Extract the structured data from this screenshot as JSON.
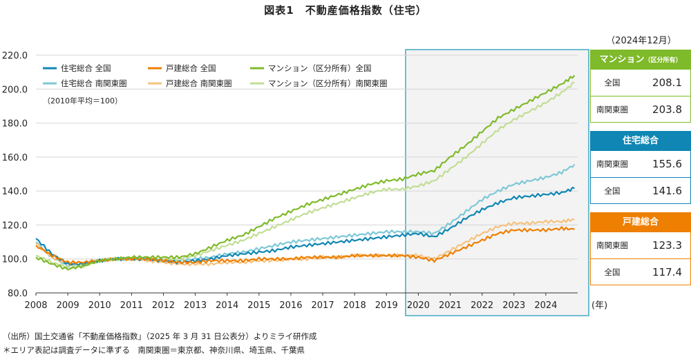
{
  "title": "図表1　不動産価格指数（住宅）",
  "chart_data": {
    "type": "line",
    "x_range": [
      2008,
      2025
    ],
    "ylim": [
      80,
      220
    ],
    "y_ticks": [
      "80.0",
      "100.0",
      "120.0",
      "140.0",
      "160.0",
      "180.0",
      "200.0",
      "220.0"
    ],
    "x_ticks": [
      "2008",
      "2009",
      "2010",
      "2011",
      "2012",
      "2013",
      "2014",
      "2015",
      "2016",
      "2017",
      "2018",
      "2019",
      "2020",
      "2021",
      "2022",
      "2023",
      "2024"
    ],
    "x_unit": "(年)",
    "note": "（2010年平均＝100）",
    "highlight_range": [
      2019.6,
      2025.0
    ],
    "legend_position": "top-left",
    "grid": "horizontal",
    "series": [
      {
        "name": "住宅総合 全国",
        "color": "#0f86b4",
        "x": [
          2008,
          2008.5,
          2009,
          2009.5,
          2010,
          2010.5,
          2011,
          2011.5,
          2012,
          2012.5,
          2013,
          2013.5,
          2014,
          2014.5,
          2015,
          2015.5,
          2016,
          2016.5,
          2017,
          2017.5,
          2018,
          2018.5,
          2019,
          2019.5,
          2020,
          2020.5,
          2021,
          2021.5,
          2022,
          2022.5,
          2023,
          2023.5,
          2024,
          2024.5,
          2024.9
        ],
        "y": [
          112,
          103,
          97,
          97,
          99,
          100,
          100,
          100,
          99,
          98,
          99,
          100,
          102,
          103,
          104,
          105,
          107,
          108,
          109,
          110,
          111,
          112,
          113,
          114,
          115,
          113,
          118,
          124,
          129,
          133,
          136,
          137,
          138,
          139,
          141.6
        ]
      },
      {
        "name": "戸建総合 全国",
        "color": "#ee7f00",
        "x": [
          2008,
          2008.5,
          2009,
          2009.5,
          2010,
          2010.5,
          2011,
          2011.5,
          2012,
          2012.5,
          2013,
          2013.5,
          2014,
          2014.5,
          2015,
          2015.5,
          2016,
          2016.5,
          2017,
          2017.5,
          2018,
          2018.5,
          2019,
          2019.5,
          2020,
          2020.5,
          2021,
          2021.5,
          2022,
          2022.5,
          2023,
          2023.5,
          2024,
          2024.5,
          2024.9
        ],
        "y": [
          108,
          102,
          98,
          98,
          99,
          100,
          100,
          100,
          99,
          98,
          98,
          99,
          99,
          99,
          100,
          100,
          100,
          101,
          101,
          101,
          102,
          102,
          102,
          102,
          101,
          99,
          103,
          107,
          111,
          115,
          117,
          117,
          117,
          118,
          117.4
        ]
      },
      {
        "name": "マンション（区分所有）全国",
        "color": "#7fba2a",
        "x": [
          2008,
          2008.5,
          2009,
          2009.5,
          2010,
          2010.5,
          2011,
          2011.5,
          2012,
          2012.5,
          2013,
          2013.5,
          2014,
          2014.5,
          2015,
          2015.5,
          2016,
          2016.5,
          2017,
          2017.5,
          2018,
          2018.5,
          2019,
          2019.5,
          2020,
          2020.5,
          2021,
          2021.5,
          2022,
          2022.5,
          2023,
          2023.5,
          2024,
          2024.5,
          2024.9
        ],
        "y": [
          101,
          97,
          94,
          96,
          99,
          100,
          101,
          101,
          101,
          101,
          103,
          107,
          111,
          114,
          119,
          124,
          128,
          132,
          135,
          138,
          141,
          144,
          146,
          147,
          150,
          152,
          160,
          167,
          175,
          183,
          188,
          193,
          198,
          203,
          208.1
        ]
      },
      {
        "name": "住宅総合 南関東圏",
        "color": "#7dc8d6",
        "x": [
          2008,
          2008.5,
          2009,
          2009.5,
          2010,
          2010.5,
          2011,
          2011.5,
          2012,
          2012.5,
          2013,
          2013.5,
          2014,
          2014.5,
          2015,
          2015.5,
          2016,
          2016.5,
          2017,
          2017.5,
          2018,
          2018.5,
          2019,
          2019.5,
          2020,
          2020.5,
          2021,
          2021.5,
          2022,
          2022.5,
          2023,
          2023.5,
          2024,
          2024.5,
          2024.9
        ],
        "y": [
          110,
          101,
          96,
          97,
          99,
          100,
          100,
          100,
          99,
          99,
          100,
          101,
          103,
          104,
          106,
          108,
          110,
          111,
          112,
          113,
          114,
          115,
          116,
          116,
          116,
          115,
          121,
          128,
          135,
          140,
          144,
          146,
          148,
          151,
          155.6
        ]
      },
      {
        "name": "戸建総合 南関東圏",
        "color": "#f5c27f",
        "x": [
          2008,
          2008.5,
          2009,
          2009.5,
          2010,
          2010.5,
          2011,
          2011.5,
          2012,
          2012.5,
          2013,
          2013.5,
          2014,
          2014.5,
          2015,
          2015.5,
          2016,
          2016.5,
          2017,
          2017.5,
          2018,
          2018.5,
          2019,
          2019.5,
          2020,
          2020.5,
          2021,
          2021.5,
          2022,
          2022.5,
          2023,
          2023.5,
          2024,
          2024.5,
          2024.9
        ],
        "y": [
          109,
          101,
          97,
          97,
          99,
          100,
          100,
          99,
          98,
          97,
          97,
          97,
          98,
          98,
          99,
          99,
          100,
          100,
          101,
          101,
          102,
          102,
          102,
          102,
          102,
          100,
          105,
          110,
          115,
          119,
          121,
          121,
          122,
          122,
          123.3
        ]
      },
      {
        "name": "マンション（区分所有）南関東圏",
        "color": "#c2dd95",
        "x": [
          2008,
          2008.5,
          2009,
          2009.5,
          2010,
          2010.5,
          2011,
          2011.5,
          2012,
          2012.5,
          2013,
          2013.5,
          2014,
          2014.5,
          2015,
          2015.5,
          2016,
          2016.5,
          2017,
          2017.5,
          2018,
          2018.5,
          2019,
          2019.5,
          2020,
          2020.5,
          2021,
          2021.5,
          2022,
          2022.5,
          2023,
          2023.5,
          2024,
          2024.5,
          2024.9
        ],
        "y": [
          102,
          98,
          95,
          96,
          99,
          100,
          100,
          100,
          100,
          100,
          102,
          105,
          108,
          111,
          115,
          119,
          123,
          127,
          130,
          133,
          136,
          139,
          141,
          141,
          143,
          146,
          153,
          160,
          168,
          176,
          182,
          187,
          192,
          198,
          203.8
        ]
      }
    ]
  },
  "summary": {
    "as_of": "（2024年12月）",
    "panels": [
      {
        "title": "マンション",
        "title_sub": "（区分所有）",
        "color": "#7fba2a",
        "rows": [
          {
            "label": "全国",
            "value": "208.1"
          },
          {
            "label": "南関東圏",
            "value": "203.8"
          }
        ]
      },
      {
        "title": "住宅総合",
        "title_sub": "",
        "color": "#0f86b4",
        "rows": [
          {
            "label": "南関東圏",
            "value": "155.6"
          },
          {
            "label": "全国",
            "value": "141.6"
          }
        ]
      },
      {
        "title": "戸建総合",
        "title_sub": "",
        "color": "#ee7f00",
        "rows": [
          {
            "label": "南関東圏",
            "value": "123.3"
          },
          {
            "label": "全国",
            "value": "117.4"
          }
        ]
      }
    ]
  },
  "notes": [
    "（出所）国土交通省「不動産価格指数」（2025 年 3 月 31 日公表分）よりミライ研作成",
    "＊エリア表記は調査データに準ずる　南関東圏＝東京都、神奈川県、埼玉県、千葉県"
  ]
}
